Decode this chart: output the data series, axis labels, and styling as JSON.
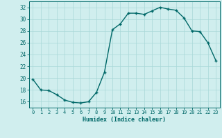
{
  "x": [
    0,
    1,
    2,
    3,
    4,
    5,
    6,
    7,
    8,
    9,
    10,
    11,
    12,
    13,
    14,
    15,
    16,
    17,
    18,
    19,
    20,
    21,
    22,
    23
  ],
  "y": [
    19.8,
    18.0,
    17.9,
    17.2,
    16.3,
    15.9,
    15.8,
    16.0,
    17.6,
    21.0,
    28.2,
    29.2,
    31.0,
    31.0,
    30.8,
    31.4,
    32.0,
    31.7,
    31.5,
    30.2,
    28.0,
    27.9,
    26.0,
    23.0
  ],
  "line_color": "#006868",
  "marker": "+",
  "bg_color": "#d0eeee",
  "grid_color": "#a8d8d8",
  "xlabel": "Humidex (Indice chaleur)",
  "xlim": [
    -0.5,
    23.5
  ],
  "ylim": [
    15.0,
    33.0
  ],
  "yticks": [
    16,
    18,
    20,
    22,
    24,
    26,
    28,
    30,
    32
  ],
  "xticks": [
    0,
    1,
    2,
    3,
    4,
    5,
    6,
    7,
    8,
    9,
    10,
    11,
    12,
    13,
    14,
    15,
    16,
    17,
    18,
    19,
    20,
    21,
    22,
    23
  ],
  "tick_color": "#006868",
  "label_color": "#006868"
}
